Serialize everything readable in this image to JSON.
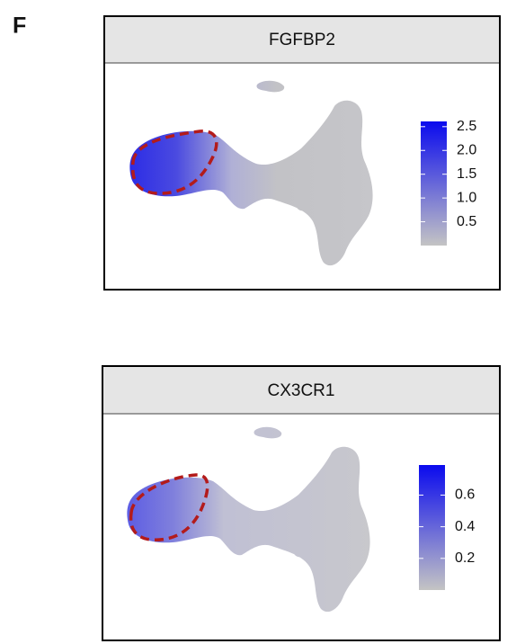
{
  "panel_label": "F",
  "panels": [
    {
      "title": "FGFBP2",
      "colorbar": {
        "lim": [
          0,
          2.61
        ],
        "low_color": "#c4c4c4",
        "high_color": "#0a0aee",
        "ticks": [
          0.5,
          {
            "value": 1,
            "label": "1.0"
          },
          1.5,
          {
            "value": 2,
            "label": "2.0"
          },
          2.5
        ]
      }
    },
    {
      "title": "CX3CR1",
      "colorbar": {
        "lim": [
          0,
          0.79
        ],
        "low_color": "#c4c4c4",
        "high_color": "#0a0aee",
        "ticks": [
          0.2,
          0.4,
          0.6
        ]
      }
    }
  ]
}
